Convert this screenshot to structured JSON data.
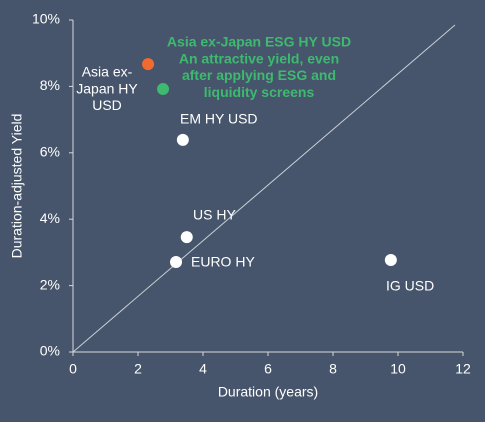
{
  "chart_data": {
    "type": "scatter",
    "x_label": "Duration (years)",
    "y_label": "Duration-adjusted Yield",
    "xlim": [
      0,
      12
    ],
    "xticks": [
      0,
      2,
      4,
      6,
      8,
      10,
      12
    ],
    "ylim": [
      0,
      10
    ],
    "yticks": [
      {
        "value": 0,
        "label": "0%"
      },
      {
        "value": 2,
        "label": "2%"
      },
      {
        "value": 4,
        "label": "4%"
      },
      {
        "value": 6,
        "label": "6%"
      },
      {
        "value": 8,
        "label": "8%"
      },
      {
        "value": 10,
        "label": "10%"
      }
    ],
    "points": [
      {
        "label": [
          "Asia ex-",
          "Japan HY",
          "USD"
        ],
        "x": 2.31,
        "y": 8.67,
        "color": "#f26a2e"
      },
      {
        "label": [
          "Asia ex-Japan ESG HY USD",
          "An attractive yield, even",
          "after applying ESG and",
          "liquidity screens"
        ],
        "x": 2.77,
        "y": 7.92,
        "color": "#3dba6f"
      },
      {
        "label": [
          "EM HY USD"
        ],
        "x": 3.38,
        "y": 6.39,
        "color": "#ffffff"
      },
      {
        "label": [
          "US HY"
        ],
        "x": 3.5,
        "y": 3.46,
        "color": "#ffffff"
      },
      {
        "label": [
          "EURO HY"
        ],
        "x": 3.17,
        "y": 2.71,
        "color": "#ffffff"
      },
      {
        "label": [
          "IG USD"
        ],
        "x": 9.78,
        "y": 2.77,
        "color": "#ffffff"
      }
    ]
  }
}
